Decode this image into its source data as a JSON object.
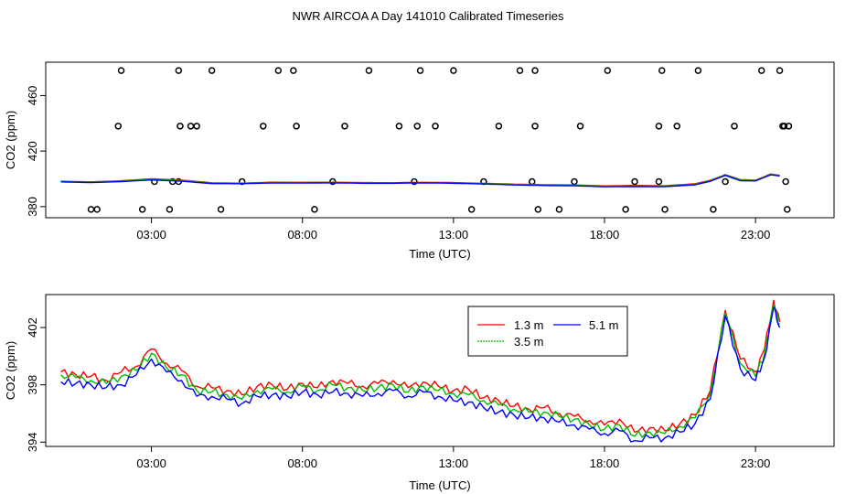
{
  "title": "NWR AIRCOA A  Day 141010  Calibrated Timeseries",
  "chart_data": [
    {
      "type": "line",
      "id": "top-panel",
      "xlabel": "Time (UTC)",
      "ylabel": "CO2 (ppm)",
      "x_units": "hours (UTC)",
      "xlim": [
        -0.5,
        25.6
      ],
      "ylim": [
        372,
        484
      ],
      "x_ticks": [
        {
          "value": 3,
          "label": "03:00"
        },
        {
          "value": 8,
          "label": "08:00"
        },
        {
          "value": 13,
          "label": "13:00"
        },
        {
          "value": 18,
          "label": "18:00"
        },
        {
          "value": 23,
          "label": "23:00"
        }
      ],
      "y_ticks": [
        {
          "value": 380,
          "label": "380"
        },
        {
          "value": 420,
          "label": "420"
        },
        {
          "value": 460,
          "label": "460"
        }
      ],
      "series": [
        {
          "name": "1.3 m",
          "color": "#ff0000",
          "x": [
            0,
            1,
            2,
            3,
            4,
            5,
            6,
            7,
            8,
            9,
            10,
            11,
            12,
            13,
            14,
            15,
            16,
            17,
            18,
            19,
            20,
            21,
            21.5,
            22,
            22.5,
            23,
            23.5,
            23.8
          ],
          "values": [
            398.3,
            397.8,
            398.6,
            400.0,
            399.1,
            397.2,
            396.9,
            397.6,
            397.5,
            397.6,
            397.3,
            397.2,
            397.5,
            397.3,
            396.8,
            396.2,
            395.8,
            395.6,
            394.9,
            395.3,
            395.0,
            396.5,
            399.0,
            403.0,
            399.5,
            399.0,
            403.5,
            402.5
          ]
        },
        {
          "name": "3.5 m",
          "color": "#00bb00",
          "x": [
            0,
            1,
            2,
            3,
            4,
            5,
            6,
            7,
            8,
            9,
            10,
            11,
            12,
            13,
            14,
            15,
            16,
            17,
            18,
            19,
            20,
            21,
            21.5,
            22,
            22.5,
            23,
            23.5,
            23.8
          ],
          "values": [
            398.0,
            397.6,
            398.4,
            399.6,
            398.8,
            397.0,
            396.8,
            397.4,
            397.3,
            397.4,
            397.1,
            397.0,
            397.3,
            397.1,
            396.6,
            396.0,
            395.6,
            395.4,
            394.6,
            394.9,
            394.7,
            396.1,
            398.6,
            402.8,
            399.2,
            398.8,
            403.2,
            402.3
          ]
        },
        {
          "name": "5.1 m",
          "color": "#0000ff",
          "x": [
            0,
            1,
            2,
            3,
            4,
            5,
            6,
            7,
            8,
            9,
            10,
            11,
            12,
            13,
            14,
            15,
            16,
            17,
            18,
            19,
            20,
            21,
            21.5,
            22,
            22.5,
            23,
            23.5,
            23.8
          ],
          "values": [
            397.8,
            397.3,
            398.0,
            399.2,
            398.3,
            396.6,
            396.5,
            397.0,
            397.0,
            397.1,
            396.8,
            396.8,
            397.1,
            396.8,
            396.3,
            395.6,
            395.2,
            395.0,
            394.3,
            394.4,
            394.4,
            395.7,
            398.2,
            402.5,
            398.6,
            398.5,
            402.9,
            402.1
          ]
        }
      ],
      "points": {
        "marker": "open-circle",
        "x": [
          1.2,
          2.7,
          3.6,
          3.9,
          3.95,
          4.3,
          5.3,
          1.9,
          4.5,
          6.7,
          9.4,
          11.8,
          12.4,
          14.5,
          15.7,
          17.2,
          19.8,
          20.4,
          22.3,
          23.9,
          1.0,
          3.1,
          3.7,
          6.0,
          7.8,
          8.4,
          9.0,
          11.2,
          11.7,
          13.6,
          14.0,
          15.6,
          15.8,
          16.5,
          17.0,
          18.7,
          19.0,
          19.8,
          20.0,
          21.6,
          22.0,
          23.95,
          24.0,
          24.05,
          24.1
        ],
        "values": [
          378,
          378,
          378,
          398,
          438,
          438,
          378,
          438,
          438,
          438,
          438,
          438,
          438,
          438,
          438,
          438,
          438,
          438,
          438,
          438,
          378,
          398,
          398,
          398,
          438,
          378,
          398,
          438,
          398,
          378,
          398,
          398,
          378,
          378,
          398,
          378,
          398,
          398,
          378,
          378,
          398,
          438,
          398,
          378,
          438
        ],
        "note": "outliers near 398 (center line), plus 378, 438 and 478 rows",
        "top_row_x": [
          2.0,
          3.9,
          5.0,
          7.2,
          7.7,
          10.2,
          11.9,
          13.0,
          15.2,
          15.7,
          18.1,
          19.9,
          21.1,
          23.2,
          23.8
        ],
        "top_row_value": 478
      }
    },
    {
      "type": "line",
      "id": "bottom-panel",
      "xlabel": "Time (UTC)",
      "ylabel": "CO2 (ppm)",
      "x_units": "hours (UTC)",
      "xlim": [
        -0.5,
        25.6
      ],
      "ylim": [
        393.7,
        404.3
      ],
      "x_ticks": [
        {
          "value": 3,
          "label": "03:00"
        },
        {
          "value": 8,
          "label": "08:00"
        },
        {
          "value": 13,
          "label": "13:00"
        },
        {
          "value": 18,
          "label": "18:00"
        },
        {
          "value": 23,
          "label": "23:00"
        }
      ],
      "y_ticks": [
        {
          "value": 394,
          "label": "394"
        },
        {
          "value": 398,
          "label": "398"
        },
        {
          "value": 402,
          "label": "402"
        }
      ],
      "legend": {
        "placement": "top-right",
        "entries": [
          {
            "name": "1.3 m",
            "color": "#ff0000"
          },
          {
            "name": "3.5 m",
            "color": "#00bb00"
          },
          {
            "name": "5.1 m",
            "color": "#0000ff"
          }
        ]
      },
      "series": [
        {
          "name": "1.3 m",
          "color": "#ff0000",
          "x": [
            0,
            0.5,
            1,
            1.5,
            2,
            2.5,
            3,
            3.5,
            4,
            4.5,
            5,
            5.5,
            6,
            6.5,
            7,
            7.5,
            8,
            8.5,
            9,
            9.5,
            10,
            10.5,
            11,
            11.5,
            12,
            12.5,
            13,
            13.5,
            14,
            14.5,
            15,
            15.5,
            16,
            16.5,
            17,
            17.5,
            18,
            18.5,
            19,
            19.5,
            20,
            20.5,
            21,
            21.5,
            22,
            22.5,
            23,
            23.3,
            23.6,
            23.8
          ],
          "values": [
            398.9,
            398.7,
            398.6,
            398.3,
            398.9,
            399.3,
            400.5,
            399.5,
            399.0,
            397.9,
            397.8,
            397.6,
            397.3,
            397.9,
            398.0,
            397.7,
            398.1,
            397.8,
            398.3,
            398.1,
            397.9,
            398.1,
            398.3,
            397.8,
            398.2,
            397.9,
            397.6,
            397.7,
            397.1,
            396.9,
            396.5,
            396.3,
            396.4,
            396.0,
            395.8,
            395.5,
            395.2,
            395.6,
            394.7,
            395.0,
            394.8,
            395.3,
            395.9,
            397.6,
            403.2,
            399.8,
            398.9,
            400.5,
            403.9,
            402.4
          ]
        },
        {
          "name": "3.5 m",
          "color": "#00bb00",
          "x": [
            0,
            0.5,
            1,
            1.5,
            2,
            2.5,
            3,
            3.5,
            4,
            4.5,
            5,
            5.5,
            6,
            6.5,
            7,
            7.5,
            8,
            8.5,
            9,
            9.5,
            10,
            10.5,
            11,
            11.5,
            12,
            12.5,
            13,
            13.5,
            14,
            14.5,
            15,
            15.5,
            16,
            16.5,
            17,
            17.5,
            18,
            18.5,
            19,
            19.5,
            20,
            20.5,
            21,
            21.5,
            22,
            22.5,
            23,
            23.3,
            23.6,
            23.8
          ],
          "values": [
            398.7,
            398.5,
            398.3,
            398.1,
            398.6,
            399.0,
            400.2,
            399.2,
            398.7,
            397.6,
            397.5,
            397.3,
            397.0,
            397.6,
            397.7,
            397.5,
            397.9,
            397.6,
            398.0,
            397.8,
            397.6,
            397.8,
            398.0,
            397.5,
            397.9,
            397.6,
            397.4,
            397.3,
            396.9,
            396.6,
            396.3,
            396.1,
            396.1,
            395.8,
            395.6,
            395.2,
            394.9,
            395.2,
            394.4,
            394.7,
            394.6,
            395.1,
            395.7,
            397.4,
            403.0,
            399.5,
            398.6,
            400.2,
            403.6,
            402.2
          ]
        },
        {
          "name": "5.1 m",
          "color": "#0000ff",
          "x": [
            0,
            0.5,
            1,
            1.5,
            2,
            2.5,
            3,
            3.5,
            4,
            4.5,
            5,
            5.5,
            6,
            6.5,
            7,
            7.5,
            8,
            8.5,
            9,
            9.5,
            10,
            10.5,
            11,
            11.5,
            12,
            12.5,
            13,
            13.5,
            14,
            14.5,
            15,
            15.5,
            16,
            16.5,
            17,
            17.5,
            18,
            18.5,
            19,
            19.5,
            20,
            20.5,
            21,
            21.5,
            22,
            22.5,
            23,
            23.3,
            23.6,
            23.8
          ],
          "values": [
            398.2,
            398.1,
            398.0,
            397.8,
            398.0,
            398.7,
            399.8,
            398.9,
            398.3,
            397.2,
            397.2,
            397.0,
            396.7,
            397.2,
            397.3,
            397.2,
            397.5,
            397.3,
            397.5,
            397.4,
            397.2,
            397.4,
            397.6,
            397.2,
            397.5,
            397.2,
            396.9,
            396.8,
            396.4,
            396.1,
            395.9,
            395.7,
            395.7,
            395.4,
            395.2,
            394.9,
            394.6,
            394.8,
            394.1,
            394.3,
            394.3,
            394.7,
            395.3,
            397.0,
            402.8,
            399.1,
            398.3,
            399.9,
            403.4,
            402.0
          ]
        }
      ]
    }
  ]
}
